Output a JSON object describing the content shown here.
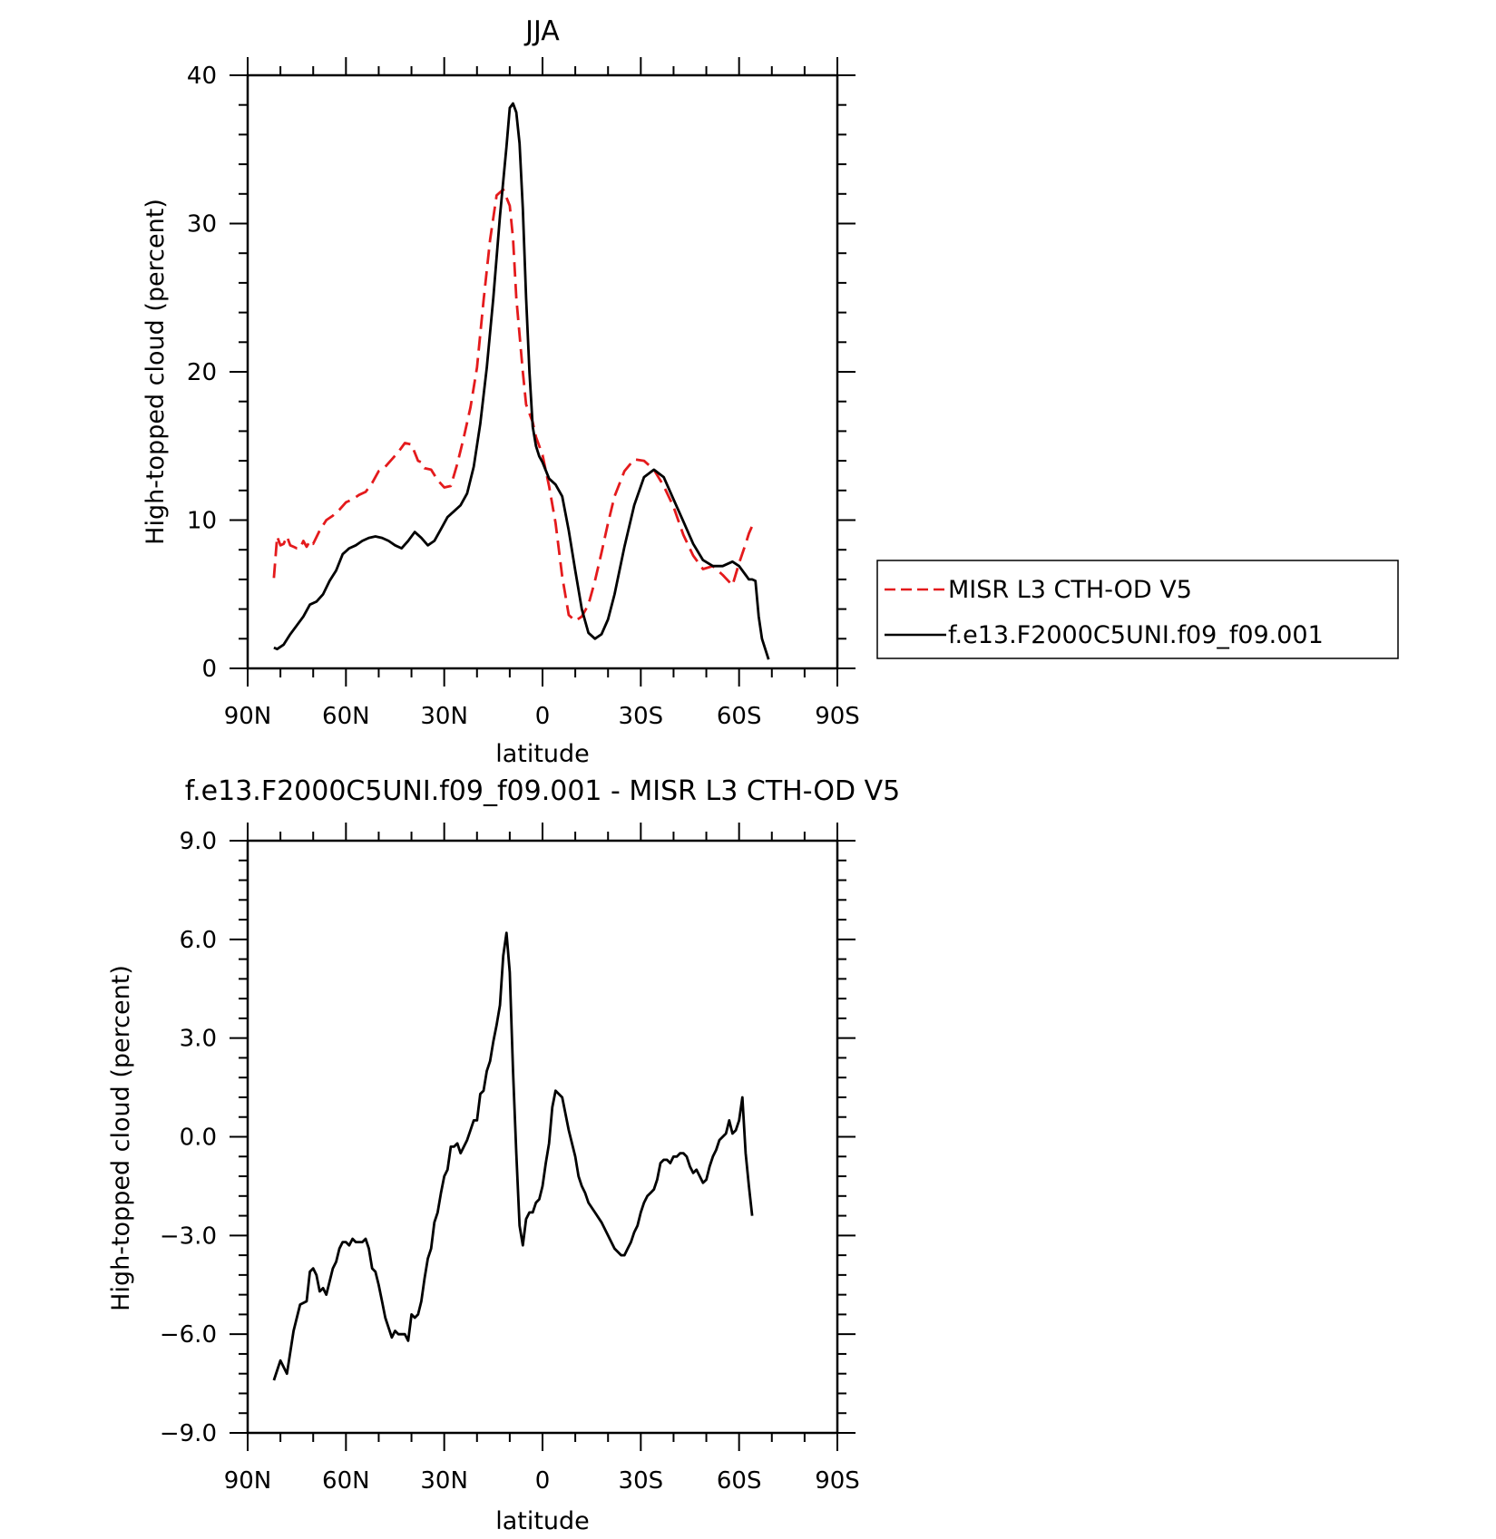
{
  "colors": {
    "model": "#000000",
    "obs": "#e41a1c",
    "frame": "#000000"
  },
  "chart_data": [
    {
      "type": "line",
      "title": "JJA",
      "xlabel": "latitude",
      "ylabel": "High-topped cloud (percent)",
      "xlim": [
        90,
        -90
      ],
      "ylim": [
        0,
        40
      ],
      "xticks": [
        90,
        60,
        30,
        0,
        -30,
        -60,
        -90
      ],
      "xtick_labels": [
        "90N",
        "60N",
        "30N",
        "0",
        "30S",
        "60S",
        "90S"
      ],
      "yticks": [
        0,
        10,
        20,
        30,
        40
      ],
      "ytick_labels": [
        "0",
        "10",
        "20",
        "30",
        "40"
      ],
      "legend_placement": "right",
      "series": [
        {
          "name": "MISR L3 CTH-OD V5",
          "style": "dashed",
          "color": "#e41a1c",
          "x": [
            82,
            81,
            80,
            79,
            78,
            77,
            76,
            75,
            74,
            73,
            72,
            71,
            70,
            68,
            66,
            64,
            62,
            60,
            58,
            56,
            54,
            52,
            50,
            48,
            46,
            44,
            42,
            40,
            38,
            37,
            36,
            34,
            32,
            30,
            28,
            26,
            24,
            22,
            20,
            18,
            16,
            14,
            12,
            10,
            9,
            8,
            6,
            5,
            3,
            2,
            0,
            -2,
            -4,
            -6,
            -8,
            -10,
            -12,
            -14,
            -16,
            -18,
            -20,
            -22,
            -25,
            -28,
            -31,
            -34,
            -37,
            -40,
            -43,
            -46,
            -49,
            -52,
            -55,
            -58,
            -60,
            -62,
            -63,
            -64
          ],
          "y": [
            6.1,
            8.9,
            8.3,
            8.4,
            8.9,
            8.3,
            8.2,
            8.1,
            8.1,
            8.6,
            8.2,
            8.6,
            8.4,
            9.3,
            10.0,
            10.3,
            10.7,
            11.2,
            11.4,
            11.7,
            11.9,
            12.5,
            13.3,
            13.6,
            14.1,
            14.6,
            15.2,
            15.1,
            14.0,
            13.9,
            13.5,
            13.4,
            12.7,
            12.2,
            12.3,
            13.8,
            15.6,
            17.6,
            20.3,
            24.8,
            28.9,
            31.9,
            32.3,
            31.2,
            29.0,
            25.0,
            20.0,
            17.8,
            16.6,
            15.6,
            14.4,
            12.3,
            9.8,
            6.2,
            3.6,
            3.2,
            3.5,
            4.3,
            5.9,
            7.8,
            9.8,
            11.6,
            13.3,
            14.1,
            14.0,
            13.4,
            12.3,
            10.9,
            9.0,
            7.6,
            6.7,
            6.9,
            6.3,
            5.6,
            7.1,
            8.4,
            9.1,
            9.6
          ]
        },
        {
          "name": "f.e13.F2000C5UNI.f09_f09.001",
          "style": "solid",
          "color": "#000000",
          "x": [
            82,
            81,
            79,
            77,
            75,
            73,
            71,
            69,
            67,
            65,
            63,
            61,
            59,
            57,
            55,
            53,
            51,
            49,
            47,
            45,
            43,
            41,
            39,
            37,
            35,
            33,
            31,
            29,
            27,
            25,
            23,
            21,
            19,
            17,
            15,
            13,
            11,
            10,
            9,
            8,
            7,
            6,
            5,
            4,
            3,
            2,
            1,
            0,
            -2,
            -4,
            -6,
            -8,
            -10,
            -12,
            -14,
            -16,
            -18,
            -20,
            -22,
            -25,
            -28,
            -31,
            -34,
            -37,
            -40,
            -43,
            -46,
            -49,
            -52,
            -55,
            -58,
            -60,
            -62,
            -63,
            -64,
            -65,
            -66,
            -67,
            -69
          ],
          "y": [
            1.4,
            1.3,
            1.6,
            2.3,
            2.9,
            3.5,
            4.3,
            4.5,
            5.0,
            5.9,
            6.6,
            7.7,
            8.1,
            8.3,
            8.6,
            8.8,
            8.9,
            8.8,
            8.6,
            8.3,
            8.1,
            8.6,
            9.2,
            8.8,
            8.3,
            8.6,
            9.4,
            10.2,
            10.6,
            11.0,
            11.8,
            13.6,
            16.5,
            20.3,
            25.0,
            30.5,
            35.2,
            37.8,
            38.1,
            37.5,
            35.4,
            31.0,
            25.0,
            20.0,
            16.3,
            15.0,
            14.3,
            13.9,
            12.8,
            12.4,
            11.6,
            9.3,
            6.6,
            4.0,
            2.4,
            2.0,
            2.3,
            3.3,
            5.0,
            8.2,
            11.0,
            12.9,
            13.4,
            12.9,
            11.4,
            9.9,
            8.4,
            7.3,
            6.9,
            6.9,
            7.2,
            6.9,
            6.3,
            6.0,
            6.0,
            5.9,
            3.5,
            2.0,
            0.6
          ]
        }
      ]
    },
    {
      "type": "line",
      "title": "f.e13.F2000C5UNI.f09_f09.001 - MISR L3 CTH-OD V5",
      "xlabel": "latitude",
      "ylabel": "High-topped cloud (percent)",
      "xlim": [
        90,
        -90
      ],
      "ylim": [
        -9.0,
        9.0
      ],
      "xticks": [
        90,
        60,
        30,
        0,
        -30,
        -60,
        -90
      ],
      "xtick_labels": [
        "90N",
        "60N",
        "30N",
        "0",
        "30S",
        "60S",
        "90S"
      ],
      "yticks": [
        -9.0,
        -6.0,
        -3.0,
        0.0,
        3.0,
        6.0,
        9.0
      ],
      "ytick_labels": [
        "−9.0",
        "−6.0",
        "−3.0",
        "0.0",
        "3.0",
        "6.0",
        "9.0"
      ],
      "series": [
        {
          "style": "solid",
          "color": "#000000",
          "x": [
            82,
            80,
            78,
            76,
            74,
            72,
            71,
            70,
            69,
            68,
            67,
            66,
            65,
            64,
            63,
            62,
            61,
            60,
            59,
            58,
            57,
            56,
            55,
            54,
            53,
            52,
            51,
            50,
            49,
            48,
            47,
            46,
            45,
            44,
            43,
            42,
            41,
            40,
            39,
            38,
            37,
            36,
            35,
            34,
            33,
            32,
            31,
            30,
            29,
            28,
            27,
            26,
            25,
            24,
            23,
            22,
            21,
            20,
            19,
            18,
            17,
            16,
            15,
            14,
            13,
            12,
            11,
            10,
            9,
            8,
            7,
            6,
            5,
            4,
            3,
            2,
            1,
            0,
            -1,
            -2,
            -3,
            -4,
            -6,
            -8,
            -10,
            -11,
            -12,
            -13,
            -14,
            -16,
            -18,
            -20,
            -22,
            -24,
            -25,
            -26,
            -27,
            -28,
            -29,
            -30,
            -31,
            -32,
            -33,
            -34,
            -35,
            -36,
            -37,
            -38,
            -39,
            -40,
            -41,
            -42,
            -43,
            -44,
            -45,
            -46,
            -47,
            -48,
            -49,
            -50,
            -51,
            -52,
            -53,
            -54,
            -55,
            -56,
            -57,
            -58,
            -59,
            -60,
            -61,
            -62,
            -63,
            -64
          ],
          "y": [
            -7.4,
            -6.8,
            -7.2,
            -5.9,
            -5.1,
            -5.0,
            -4.1,
            -4.0,
            -4.2,
            -4.7,
            -4.6,
            -4.8,
            -4.4,
            -4.0,
            -3.8,
            -3.4,
            -3.2,
            -3.2,
            -3.3,
            -3.1,
            -3.2,
            -3.2,
            -3.2,
            -3.1,
            -3.4,
            -4.0,
            -4.1,
            -4.5,
            -5.0,
            -5.5,
            -5.8,
            -6.1,
            -5.9,
            -6.0,
            -6.0,
            -6.0,
            -6.2,
            -5.4,
            -5.5,
            -5.4,
            -5.0,
            -4.3,
            -3.7,
            -3.4,
            -2.6,
            -2.3,
            -1.7,
            -1.2,
            -1.0,
            -0.3,
            -0.3,
            -0.2,
            -0.5,
            -0.3,
            -0.1,
            0.2,
            0.5,
            0.5,
            1.3,
            1.4,
            2.0,
            2.3,
            2.9,
            3.4,
            4.0,
            5.5,
            6.2,
            5.0,
            2.0,
            -0.5,
            -2.7,
            -3.3,
            -2.5,
            -2.3,
            -2.3,
            -2.0,
            -1.9,
            -1.5,
            -0.8,
            -0.2,
            0.9,
            1.4,
            1.2,
            0.2,
            -0.6,
            -1.2,
            -1.5,
            -1.7,
            -2.0,
            -2.3,
            -2.6,
            -3.0,
            -3.4,
            -3.6,
            -3.6,
            -3.4,
            -3.2,
            -2.9,
            -2.7,
            -2.3,
            -2.0,
            -1.8,
            -1.7,
            -1.6,
            -1.3,
            -0.8,
            -0.7,
            -0.7,
            -0.8,
            -0.6,
            -0.6,
            -0.5,
            -0.5,
            -0.6,
            -0.9,
            -1.1,
            -1.0,
            -1.2,
            -1.4,
            -1.3,
            -0.9,
            -0.6,
            -0.4,
            -0.1,
            0.0,
            0.1,
            0.5,
            0.1,
            0.2,
            0.5,
            1.2,
            -0.5,
            -1.5,
            -2.4
          ]
        }
      ]
    }
  ]
}
